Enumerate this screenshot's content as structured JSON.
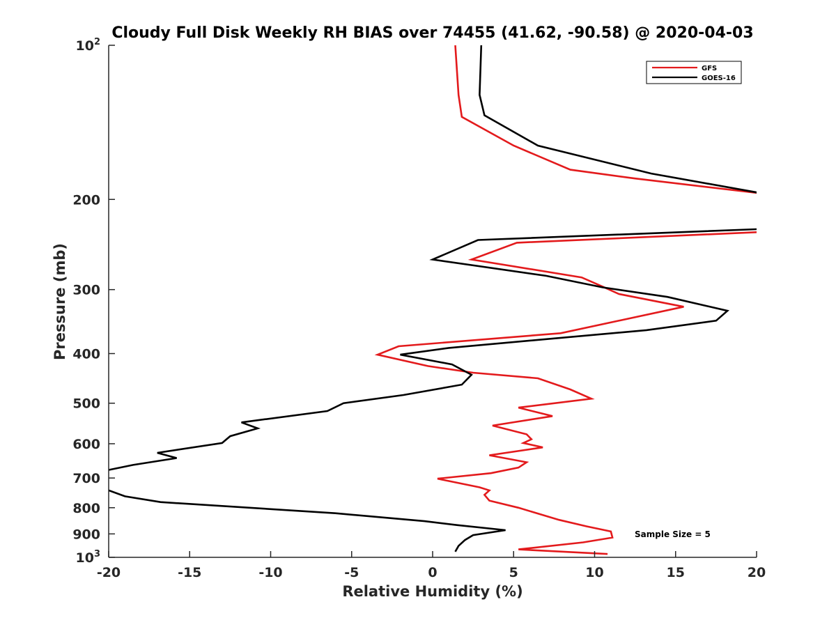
{
  "chart_data": {
    "type": "line",
    "title": "Cloudy Full Disk Weekly RH BIAS over 74455 (41.62, -90.58) @ 2020-04-03",
    "xlabel": "Relative Humidity (%)",
    "ylabel": "Pressure (mb)",
    "xlim": [
      -20,
      20
    ],
    "ylim": [
      100,
      1000
    ],
    "y_scale": "log",
    "y_reversed": true,
    "grid": false,
    "legend_position": "top-right",
    "x_ticks": [
      "-20",
      "-15",
      "-10",
      "-5",
      "0",
      "5",
      "10",
      "15",
      "20"
    ],
    "y_ticks": [
      {
        "value": 100,
        "base": "10",
        "exp": "2"
      },
      {
        "value": 200,
        "label": "200"
      },
      {
        "value": 300,
        "label": "300"
      },
      {
        "value": 400,
        "label": "400"
      },
      {
        "value": 500,
        "label": "500"
      },
      {
        "value": 600,
        "label": "600"
      },
      {
        "value": 700,
        "label": "700"
      },
      {
        "value": 800,
        "label": "800"
      },
      {
        "value": 900,
        "label": "900"
      },
      {
        "value": 1000,
        "base": "10",
        "exp": "3"
      }
    ],
    "annotation": "Sample Size = 5",
    "series": [
      {
        "name": "GFS",
        "color": "#e31a1c",
        "points": [
          [
            1.4,
            100
          ],
          [
            1.6,
            125
          ],
          [
            1.8,
            138
          ],
          [
            5.0,
            157
          ],
          [
            8.5,
            175
          ],
          [
            12.5,
            182
          ],
          [
            20.5,
            195
          ],
          [
            21.0,
            231
          ],
          [
            5.2,
            243
          ],
          [
            2.4,
            262
          ],
          [
            9.2,
            284
          ],
          [
            10.5,
            296
          ],
          [
            11.5,
            306
          ],
          [
            15.5,
            324
          ],
          [
            7.9,
            365
          ],
          [
            -2.1,
            387
          ],
          [
            -3.4,
            402
          ],
          [
            -0.3,
            423
          ],
          [
            2.5,
            436
          ],
          [
            6.5,
            447
          ],
          [
            8.5,
            470
          ],
          [
            9.8,
            490
          ],
          [
            5.3,
            510
          ],
          [
            7.4,
            530
          ],
          [
            3.7,
            553
          ],
          [
            5.8,
            575
          ],
          [
            6.1,
            588
          ],
          [
            5.6,
            598
          ],
          [
            6.8,
            610
          ],
          [
            3.5,
            632
          ],
          [
            5.8,
            652
          ],
          [
            5.3,
            668
          ],
          [
            3.6,
            685
          ],
          [
            0.3,
            702
          ],
          [
            2.9,
            730
          ],
          [
            3.5,
            740
          ],
          [
            3.2,
            755
          ],
          [
            3.5,
            775
          ],
          [
            5.3,
            800
          ],
          [
            7.8,
            845
          ],
          [
            9.5,
            870
          ],
          [
            11.0,
            890
          ],
          [
            11.1,
            915
          ],
          [
            9.3,
            935
          ],
          [
            5.3,
            965
          ],
          [
            10.8,
            985
          ]
        ]
      },
      {
        "name": "GOES-16",
        "color": "#000000",
        "points": [
          [
            3.0,
            100
          ],
          [
            2.9,
            125
          ],
          [
            3.2,
            137
          ],
          [
            6.5,
            157
          ],
          [
            13.5,
            178
          ],
          [
            20.5,
            195
          ],
          [
            21.0,
            228
          ],
          [
            2.8,
            240
          ],
          [
            0.0,
            262
          ],
          [
            7.0,
            282
          ],
          [
            10.5,
            297
          ],
          [
            14.5,
            310
          ],
          [
            18.2,
            330
          ],
          [
            17.5,
            345
          ],
          [
            13.2,
            360
          ],
          [
            1.0,
            390
          ],
          [
            -2.0,
            402
          ],
          [
            1.2,
            420
          ],
          [
            2.4,
            440
          ],
          [
            1.8,
            460
          ],
          [
            -1.8,
            482
          ],
          [
            -5.5,
            500
          ],
          [
            -6.5,
            518
          ],
          [
            -11.8,
            545
          ],
          [
            -10.8,
            560
          ],
          [
            -12.5,
            580
          ],
          [
            -13.0,
            598
          ],
          [
            -17.0,
            625
          ],
          [
            -15.8,
            640
          ],
          [
            -18.5,
            660
          ],
          [
            -20.5,
            680
          ],
          [
            -20.5,
            730
          ],
          [
            -20.0,
            740
          ],
          [
            -19.0,
            760
          ],
          [
            -16.8,
            780
          ],
          [
            -6.0,
            820
          ],
          [
            -0.5,
            850
          ],
          [
            1.5,
            865
          ],
          [
            4.5,
            885
          ],
          [
            2.5,
            905
          ],
          [
            2.0,
            925
          ],
          [
            1.6,
            950
          ],
          [
            1.4,
            975
          ]
        ]
      }
    ]
  }
}
